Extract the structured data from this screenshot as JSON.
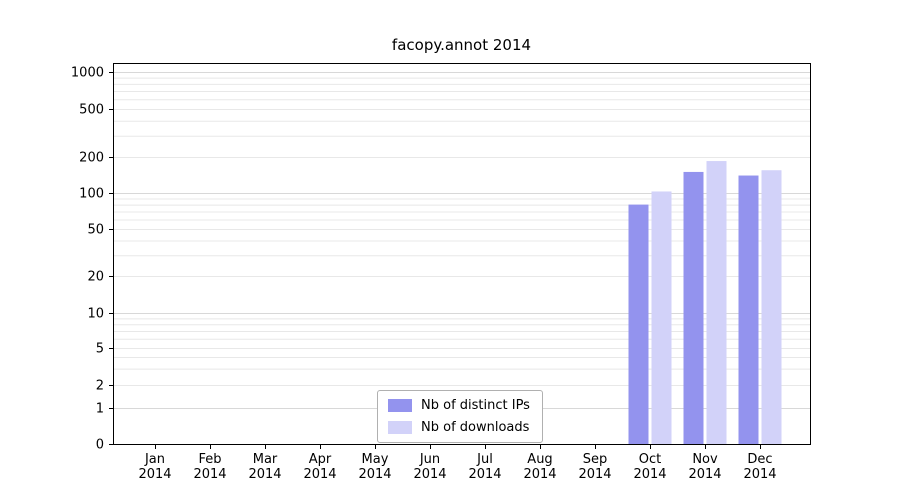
{
  "chart_data": {
    "type": "bar",
    "title": "facopy.annot 2014",
    "categories": [
      "Jan",
      "Feb",
      "Mar",
      "Apr",
      "May",
      "Jun",
      "Jul",
      "Aug",
      "Sep",
      "Oct",
      "Nov",
      "Dec"
    ],
    "year": "2014",
    "series": [
      {
        "name": "Nb of distinct IPs",
        "color": "#9393ee",
        "values": [
          0,
          0,
          0,
          0,
          0,
          0,
          0,
          0,
          0,
          80,
          150,
          140
        ]
      },
      {
        "name": "Nb of downloads",
        "color": "#d2d2f9",
        "values": [
          0,
          0,
          0,
          0,
          0,
          0,
          0,
          0,
          0,
          103,
          185,
          155
        ]
      }
    ],
    "y_ticks": [
      0,
      1,
      2,
      5,
      10,
      20,
      50,
      100,
      200,
      500,
      1000
    ],
    "y_scale": "log",
    "ylim": [
      0,
      1000
    ],
    "grid": true,
    "legend": {
      "position": "bottom-center",
      "entries": [
        "Nb of distinct IPs",
        "Nb of downloads"
      ]
    },
    "colors": {
      "grid_major": "#d8d8d8",
      "grid_minor": "#e8e8e8",
      "axis": "#000000",
      "background": "#ffffff"
    }
  }
}
